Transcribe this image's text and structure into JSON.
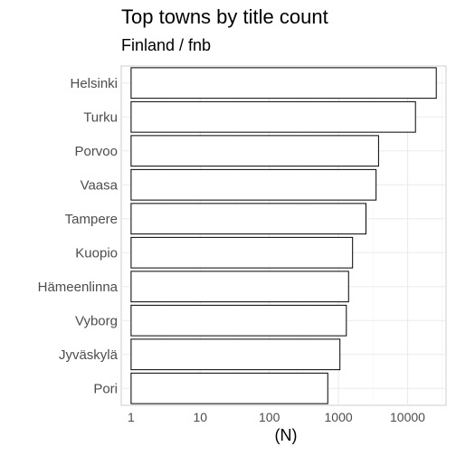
{
  "chart_data": {
    "type": "bar",
    "orientation": "horizontal",
    "title": "Top towns by title count",
    "subtitle": "Finland / fnb",
    "xlabel": "(N)",
    "ylabel": "",
    "x_scale": "log10",
    "xlim": [
      0.72,
      36000
    ],
    "xticks": [
      1,
      10,
      100,
      1000,
      10000
    ],
    "xtick_labels": [
      "1",
      "10",
      "100",
      "1000",
      "10000"
    ],
    "grid": true,
    "categories": [
      "Helsinki",
      "Turku",
      "Porvoo",
      "Vaasa",
      "Tampere",
      "Kuopio",
      "Hämeenlinna",
      "Vyborg",
      "Jyväskylä",
      "Pori"
    ],
    "values": [
      26000,
      13000,
      3800,
      3500,
      2500,
      1600,
      1400,
      1300,
      1050,
      700
    ],
    "colors": {
      "bar_fill": "#ffffff",
      "bar_stroke": "#000000",
      "grid": "#ebebeb",
      "axis_text": "#4d4d4d"
    }
  }
}
